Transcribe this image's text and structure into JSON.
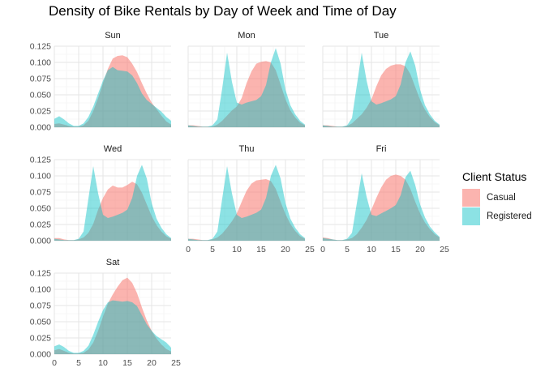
{
  "chart_data": {
    "type": "area",
    "title": "Density of Bike Rentals by Day of Week and Time of Day",
    "xlabel": "",
    "ylabel": "",
    "xlim": [
      0,
      24
    ],
    "ylim": [
      0,
      0.125
    ],
    "x_ticks": [
      "0",
      "5",
      "10",
      "15",
      "20",
      "25"
    ],
    "y_ticks": [
      "0.000",
      "0.025",
      "0.050",
      "0.075",
      "0.100",
      "0.125"
    ],
    "grid": true,
    "legend": {
      "title": "Client Status",
      "position": "right",
      "entries": [
        "Casual",
        "Registered"
      ]
    },
    "colors": {
      "Casual": "#F8766D",
      "Registered": "#00BFC4"
    },
    "x": [
      0,
      1,
      2,
      3,
      4,
      5,
      6,
      7,
      8,
      9,
      10,
      11,
      12,
      13,
      14,
      15,
      16,
      17,
      18,
      19,
      20,
      21,
      22,
      23,
      24
    ],
    "panels": [
      {
        "name": "Sun",
        "series": [
          {
            "name": "Casual",
            "values": [
              0.005,
              0.006,
              0.004,
              0.002,
              0.001,
              0.001,
              0.003,
              0.01,
              0.025,
              0.045,
              0.068,
              0.09,
              0.106,
              0.11,
              0.111,
              0.108,
              0.098,
              0.085,
              0.068,
              0.052,
              0.038,
              0.028,
              0.018,
              0.009,
              0.004
            ]
          },
          {
            "name": "Registered",
            "values": [
              0.013,
              0.017,
              0.012,
              0.006,
              0.002,
              0.002,
              0.006,
              0.016,
              0.032,
              0.052,
              0.072,
              0.088,
              0.093,
              0.088,
              0.087,
              0.086,
              0.08,
              0.068,
              0.052,
              0.042,
              0.036,
              0.03,
              0.024,
              0.016,
              0.01
            ]
          }
        ]
      },
      {
        "name": "Mon",
        "series": [
          {
            "name": "Casual",
            "values": [
              0.003,
              0.003,
              0.002,
              0.001,
              0.001,
              0.001,
              0.004,
              0.01,
              0.018,
              0.026,
              0.032,
              0.045,
              0.068,
              0.086,
              0.098,
              0.101,
              0.102,
              0.1,
              0.088,
              0.066,
              0.043,
              0.026,
              0.015,
              0.007,
              0.003
            ]
          },
          {
            "name": "Registered",
            "values": [
              0.003,
              0.002,
              0.001,
              0.001,
              0.001,
              0.003,
              0.012,
              0.06,
              0.115,
              0.07,
              0.038,
              0.035,
              0.038,
              0.04,
              0.042,
              0.048,
              0.065,
              0.1,
              0.122,
              0.098,
              0.058,
              0.034,
              0.02,
              0.01,
              0.004
            ]
          }
        ]
      },
      {
        "name": "Tue",
        "series": [
          {
            "name": "Casual",
            "values": [
              0.003,
              0.003,
              0.002,
              0.001,
              0.001,
              0.002,
              0.006,
              0.013,
              0.02,
              0.03,
              0.043,
              0.063,
              0.08,
              0.09,
              0.095,
              0.097,
              0.097,
              0.094,
              0.082,
              0.062,
              0.042,
              0.027,
              0.016,
              0.008,
              0.003
            ]
          },
          {
            "name": "Registered",
            "values": [
              0.003,
              0.002,
              0.001,
              0.001,
              0.001,
              0.003,
              0.014,
              0.065,
              0.115,
              0.072,
              0.04,
              0.035,
              0.037,
              0.04,
              0.043,
              0.048,
              0.066,
              0.1,
              0.117,
              0.095,
              0.058,
              0.034,
              0.02,
              0.01,
              0.004
            ]
          }
        ]
      },
      {
        "name": "Wed",
        "series": [
          {
            "name": "Casual",
            "values": [
              0.004,
              0.004,
              0.002,
              0.001,
              0.001,
              0.002,
              0.005,
              0.012,
              0.026,
              0.048,
              0.066,
              0.079,
              0.085,
              0.082,
              0.082,
              0.086,
              0.091,
              0.087,
              0.074,
              0.056,
              0.038,
              0.024,
              0.014,
              0.007,
              0.003
            ]
          },
          {
            "name": "Registered",
            "values": [
              0.003,
              0.002,
              0.001,
              0.001,
              0.001,
              0.003,
              0.014,
              0.065,
              0.115,
              0.073,
              0.04,
              0.035,
              0.037,
              0.04,
              0.043,
              0.048,
              0.066,
              0.1,
              0.117,
              0.096,
              0.058,
              0.034,
              0.02,
              0.01,
              0.004
            ]
          }
        ]
      },
      {
        "name": "Thu",
        "series": [
          {
            "name": "Casual",
            "values": [
              0.003,
              0.003,
              0.002,
              0.001,
              0.001,
              0.002,
              0.005,
              0.011,
              0.02,
              0.03,
              0.042,
              0.06,
              0.077,
              0.088,
              0.093,
              0.094,
              0.095,
              0.092,
              0.08,
              0.06,
              0.041,
              0.026,
              0.015,
              0.007,
              0.003
            ]
          },
          {
            "name": "Registered",
            "values": [
              0.003,
              0.002,
              0.001,
              0.001,
              0.001,
              0.003,
              0.014,
              0.065,
              0.115,
              0.073,
              0.04,
              0.035,
              0.037,
              0.04,
              0.043,
              0.048,
              0.066,
              0.1,
              0.117,
              0.096,
              0.058,
              0.034,
              0.02,
              0.01,
              0.004
            ]
          }
        ]
      },
      {
        "name": "Fri",
        "series": [
          {
            "name": "Casual",
            "values": [
              0.005,
              0.004,
              0.002,
              0.001,
              0.001,
              0.002,
              0.004,
              0.01,
              0.02,
              0.032,
              0.048,
              0.066,
              0.082,
              0.094,
              0.1,
              0.102,
              0.1,
              0.094,
              0.08,
              0.06,
              0.042,
              0.028,
              0.018,
              0.01,
              0.005
            ]
          },
          {
            "name": "Registered",
            "values": [
              0.004,
              0.003,
              0.002,
              0.001,
              0.001,
              0.003,
              0.012,
              0.058,
              0.104,
              0.068,
              0.04,
              0.038,
              0.042,
              0.046,
              0.05,
              0.055,
              0.07,
              0.098,
              0.108,
              0.086,
              0.056,
              0.036,
              0.022,
              0.013,
              0.006
            ]
          }
        ]
      },
      {
        "name": "Sat",
        "series": [
          {
            "name": "Casual",
            "values": [
              0.006,
              0.008,
              0.005,
              0.002,
              0.001,
              0.001,
              0.002,
              0.007,
              0.018,
              0.036,
              0.058,
              0.078,
              0.092,
              0.104,
              0.114,
              0.118,
              0.11,
              0.094,
              0.072,
              0.052,
              0.036,
              0.024,
              0.015,
              0.008,
              0.004
            ]
          },
          {
            "name": "Registered",
            "values": [
              0.012,
              0.015,
              0.011,
              0.005,
              0.002,
              0.002,
              0.005,
              0.013,
              0.03,
              0.05,
              0.068,
              0.08,
              0.083,
              0.082,
              0.081,
              0.082,
              0.08,
              0.074,
              0.06,
              0.046,
              0.036,
              0.028,
              0.023,
              0.018,
              0.01
            ]
          }
        ]
      }
    ]
  }
}
